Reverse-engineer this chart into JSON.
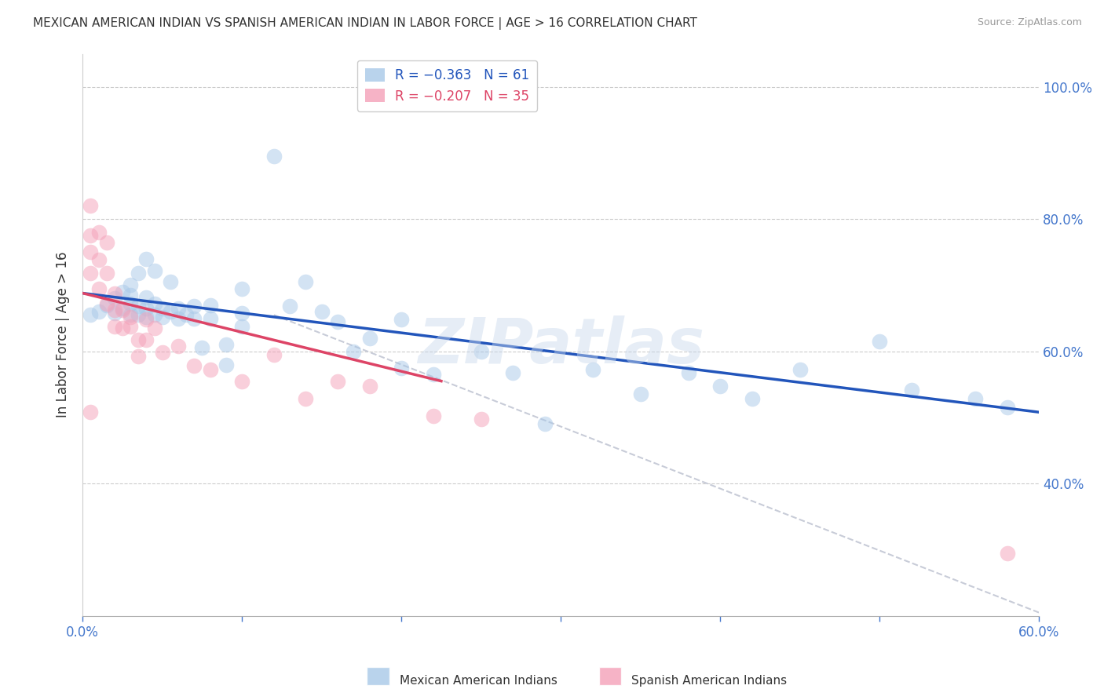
{
  "title": "MEXICAN AMERICAN INDIAN VS SPANISH AMERICAN INDIAN IN LABOR FORCE | AGE > 16 CORRELATION CHART",
  "source": "Source: ZipAtlas.com",
  "ylabel": "In Labor Force | Age > 16",
  "watermark": "ZIPatlas",
  "legend_blue_r": "R = −0.363",
  "legend_blue_n": "N = 61",
  "legend_pink_r": "R = −0.207",
  "legend_pink_n": "N = 35",
  "legend_blue_label": "Mexican American Indians",
  "legend_pink_label": "Spanish American Indians",
  "xlim": [
    0.0,
    0.6
  ],
  "ylim": [
    0.2,
    1.05
  ],
  "xticks": [
    0.0,
    0.1,
    0.2,
    0.3,
    0.4,
    0.5,
    0.6
  ],
  "xtick_labels_show": [
    "0.0%",
    "",
    "",
    "",
    "",
    "",
    "60.0%"
  ],
  "yticks_right": [
    0.4,
    0.6,
    0.8,
    1.0
  ],
  "ytick_labels_right": [
    "40.0%",
    "60.0%",
    "80.0%",
    "100.0%"
  ],
  "blue_color": "#a8c8e8",
  "pink_color": "#f4a0b8",
  "blue_line_color": "#2255bb",
  "pink_line_color": "#dd4466",
  "dashed_line_color": "#c8ccd8",
  "title_color": "#333333",
  "axis_color": "#4477cc",
  "grid_color": "#cccccc",
  "blue_dots_x": [
    0.005,
    0.01,
    0.015,
    0.02,
    0.02,
    0.025,
    0.025,
    0.03,
    0.03,
    0.03,
    0.03,
    0.035,
    0.035,
    0.035,
    0.04,
    0.04,
    0.04,
    0.04,
    0.045,
    0.045,
    0.045,
    0.05,
    0.05,
    0.055,
    0.055,
    0.06,
    0.06,
    0.065,
    0.07,
    0.07,
    0.075,
    0.08,
    0.08,
    0.09,
    0.09,
    0.1,
    0.1,
    0.1,
    0.12,
    0.13,
    0.14,
    0.15,
    0.16,
    0.17,
    0.18,
    0.2,
    0.2,
    0.22,
    0.25,
    0.27,
    0.29,
    0.32,
    0.35,
    0.38,
    0.4,
    0.42,
    0.45,
    0.5,
    0.52,
    0.56,
    0.58
  ],
  "blue_dots_y": [
    0.655,
    0.66,
    0.67,
    0.658,
    0.68,
    0.665,
    0.69,
    0.655,
    0.672,
    0.685,
    0.7,
    0.655,
    0.668,
    0.718,
    0.652,
    0.665,
    0.682,
    0.74,
    0.655,
    0.672,
    0.722,
    0.652,
    0.665,
    0.66,
    0.705,
    0.65,
    0.665,
    0.655,
    0.65,
    0.668,
    0.605,
    0.65,
    0.67,
    0.58,
    0.61,
    0.638,
    0.658,
    0.695,
    0.895,
    0.668,
    0.705,
    0.66,
    0.645,
    0.6,
    0.62,
    0.648,
    0.575,
    0.565,
    0.6,
    0.568,
    0.49,
    0.572,
    0.535,
    0.568,
    0.548,
    0.528,
    0.572,
    0.615,
    0.542,
    0.528,
    0.515
  ],
  "pink_dots_x": [
    0.005,
    0.005,
    0.005,
    0.005,
    0.005,
    0.01,
    0.01,
    0.01,
    0.015,
    0.015,
    0.015,
    0.02,
    0.02,
    0.02,
    0.025,
    0.025,
    0.03,
    0.03,
    0.035,
    0.035,
    0.04,
    0.04,
    0.045,
    0.05,
    0.06,
    0.07,
    0.08,
    0.1,
    0.12,
    0.14,
    0.16,
    0.18,
    0.22,
    0.25,
    0.58
  ],
  "pink_dots_y": [
    0.82,
    0.775,
    0.75,
    0.718,
    0.508,
    0.78,
    0.738,
    0.695,
    0.765,
    0.718,
    0.672,
    0.688,
    0.662,
    0.638,
    0.662,
    0.635,
    0.652,
    0.638,
    0.618,
    0.592,
    0.648,
    0.618,
    0.635,
    0.598,
    0.608,
    0.578,
    0.572,
    0.555,
    0.595,
    0.528,
    0.555,
    0.548,
    0.502,
    0.498,
    0.295
  ],
  "blue_trend_x": [
    0.0,
    0.6
  ],
  "blue_trend_y": [
    0.688,
    0.508
  ],
  "pink_trend_x": [
    0.0,
    0.225
  ],
  "pink_trend_y": [
    0.688,
    0.555
  ],
  "dashed_trend_x": [
    0.12,
    0.6
  ],
  "dashed_trend_y": [
    0.655,
    0.205
  ],
  "dot_size": 200,
  "dot_alpha": 0.5
}
